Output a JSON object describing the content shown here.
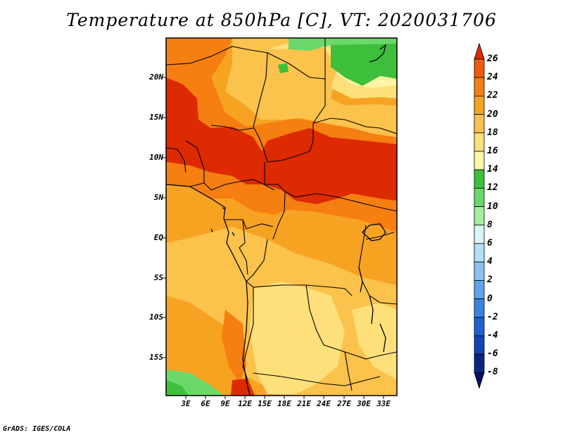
{
  "title": "Temperature at 850hPa [C], VT: 2020031706",
  "credit": "GrADS: IGES/COLA",
  "map": {
    "variable": "Temperature at 850hPa",
    "units": "C",
    "valid_time": "2020031706",
    "lat_labels": [
      "20N",
      "15N",
      "10N",
      "5N",
      "EQ",
      "5S",
      "10S",
      "15S"
    ],
    "lon_labels": [
      "3E",
      "6E",
      "9E",
      "12E",
      "15E",
      "18E",
      "21E",
      "24E",
      "27E",
      "30E",
      "33E"
    ]
  },
  "colorbar": {
    "levels": [
      "26",
      "24",
      "22",
      "20",
      "18",
      "16",
      "14",
      "12",
      "10",
      "8",
      "6",
      "4",
      "2",
      "0",
      "-2",
      "-4",
      "-6",
      "-8"
    ],
    "colors": [
      "#dd2a00",
      "#f05b0c",
      "#f57f10",
      "#f7a322",
      "#fbc24c",
      "#fde07a",
      "#fef6a6",
      "#3dbf3c",
      "#6bd86a",
      "#a3eda0",
      "#daf5f7",
      "#b2dff5",
      "#8ac3f2",
      "#5ea3ec",
      "#3b83e3",
      "#1f63d2",
      "#1046b2",
      "#0a2582",
      "#0a0f5e"
    ]
  }
}
